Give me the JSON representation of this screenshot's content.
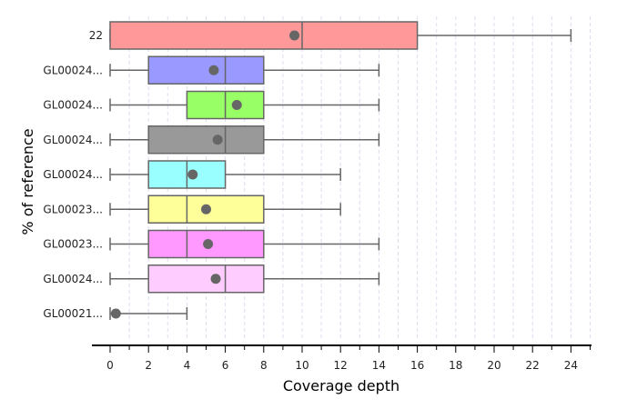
{
  "chart_data": {
    "type": "boxplot",
    "title": "",
    "xlabel": "Coverage depth",
    "ylabel": "% of reference",
    "xlim": [
      0,
      25
    ],
    "x_ticks": [
      0,
      2,
      4,
      6,
      8,
      10,
      12,
      14,
      16,
      18,
      20,
      22,
      24
    ],
    "grid": "vertical dashed",
    "legend": "none",
    "boxes": [
      {
        "label": "22",
        "min": 0,
        "q1": 0,
        "median": 10,
        "q3": 16,
        "max": 24,
        "mean": 9.6,
        "color": "#ff9999"
      },
      {
        "label": "GL00024...",
        "min": 0,
        "q1": 2,
        "median": 6,
        "q3": 8,
        "max": 14,
        "mean": 5.4,
        "color": "#9999ff"
      },
      {
        "label": "GL00024...",
        "min": 0,
        "q1": 4,
        "median": 6,
        "q3": 8,
        "max": 14,
        "mean": 6.6,
        "color": "#99ff66"
      },
      {
        "label": "GL00024...",
        "min": 0,
        "q1": 2,
        "median": 6,
        "q3": 8,
        "max": 14,
        "mean": 5.6,
        "color": "#999999"
      },
      {
        "label": "GL00024...",
        "min": 0,
        "q1": 2,
        "median": 4,
        "q3": 6,
        "max": 12,
        "mean": 4.3,
        "color": "#99ffff"
      },
      {
        "label": "GL00023...",
        "min": 0,
        "q1": 2,
        "median": 4,
        "q3": 8,
        "max": 12,
        "mean": 5.0,
        "color": "#ffff99"
      },
      {
        "label": "GL00023...",
        "min": 0,
        "q1": 2,
        "median": 4,
        "q3": 8,
        "max": 14,
        "mean": 5.1,
        "color": "#ff99ff"
      },
      {
        "label": "GL00024...",
        "min": 0,
        "q1": 2,
        "median": 6,
        "q3": 8,
        "max": 14,
        "mean": 5.5,
        "color": "#ffccff"
      },
      {
        "label": "GL00021...",
        "min": 0,
        "q1": 0,
        "median": 0,
        "q3": 0,
        "max": 4,
        "mean": 0.3,
        "color": "#ffffff"
      }
    ]
  }
}
